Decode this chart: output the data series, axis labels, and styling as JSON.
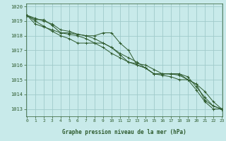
{
  "title": "Graphe pression niveau de la mer (hPa)",
  "background_color": "#c8eaea",
  "plot_bg_color": "#c8eaea",
  "grid_color": "#a0caca",
  "line_color": "#2d5a2d",
  "label_color": "#2d5a2d",
  "bottom_bar_color": "#2d5a2d",
  "bottom_text_color": "#c8eaea",
  "x_min": 0,
  "x_max": 23,
  "y_min": 1012.5,
  "y_max": 1020.2,
  "y_ticks": [
    1013,
    1014,
    1015,
    1016,
    1017,
    1018,
    1019,
    1020
  ],
  "x_ticks": [
    0,
    1,
    2,
    3,
    4,
    5,
    6,
    7,
    8,
    9,
    10,
    11,
    12,
    13,
    14,
    15,
    16,
    17,
    18,
    19,
    20,
    21,
    22,
    23
  ],
  "series": [
    [
      1019.4,
      1019.1,
      1019.1,
      1018.7,
      1018.2,
      1018.2,
      1018.1,
      1018.0,
      1018.0,
      1018.2,
      1018.2,
      1017.5,
      1017.0,
      1016.0,
      1015.8,
      1015.4,
      1015.4,
      1015.4,
      1015.4,
      1015.0,
      1014.7,
      1013.6,
      1013.2,
      1013.0
    ],
    [
      1019.4,
      1019.0,
      1018.65,
      1018.3,
      1018.0,
      1017.8,
      1017.5,
      1017.5,
      1017.5,
      1017.5,
      1017.2,
      1016.8,
      1016.5,
      1016.2,
      1015.8,
      1015.4,
      1015.4,
      1015.4,
      1015.4,
      1015.2,
      1014.5,
      1013.8,
      1013.2,
      1013.0
    ],
    [
      1019.4,
      1019.2,
      1019.0,
      1018.8,
      1018.4,
      1018.3,
      1018.1,
      1018.0,
      1017.8,
      1017.5,
      1017.2,
      1016.7,
      1016.2,
      1016.1,
      1016.0,
      1015.7,
      1015.4,
      1015.4,
      1015.3,
      1015.0,
      1014.3,
      1013.5,
      1013.0,
      1013.0
    ],
    [
      1019.4,
      1018.8,
      1018.6,
      1018.4,
      1018.2,
      1018.1,
      1018.0,
      1017.8,
      1017.5,
      1017.2,
      1016.8,
      1016.5,
      1016.2,
      1016.0,
      1015.8,
      1015.4,
      1015.3,
      1015.2,
      1015.0,
      1015.0,
      1014.7,
      1014.2,
      1013.5,
      1013.0
    ]
  ]
}
